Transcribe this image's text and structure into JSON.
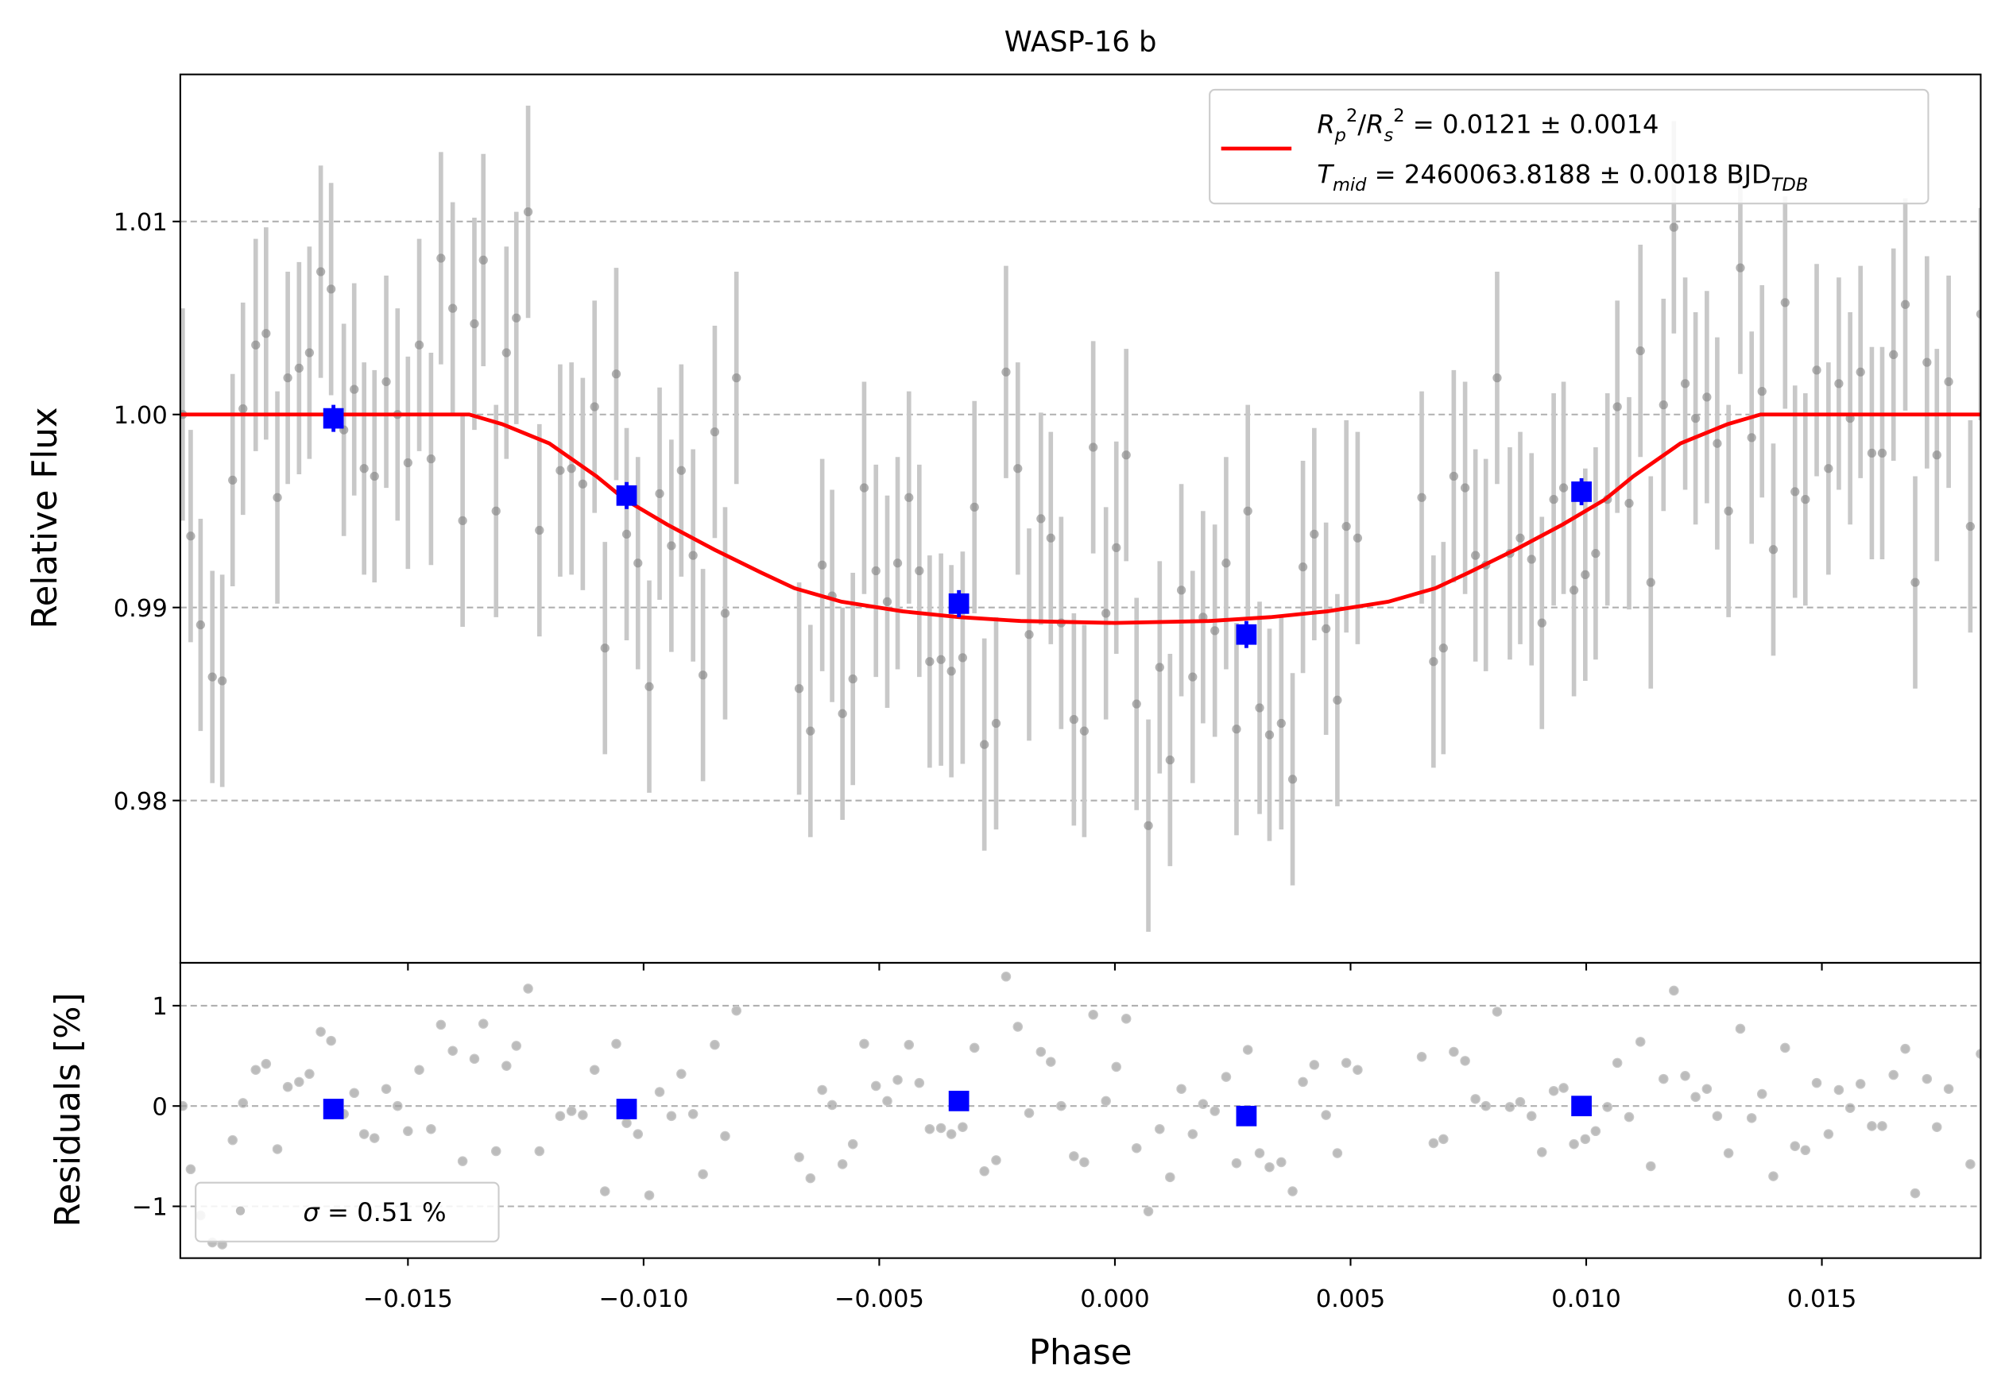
{
  "chart_data": [
    {
      "type": "scatter",
      "title": "WASP-16 b",
      "ylabel": "Relative Flux",
      "xlim": [
        -0.01983,
        0.01837
      ],
      "ylim": [
        0.97159,
        1.01762
      ],
      "yticks": [
        0.98,
        0.99,
        {
          "value": 1.0,
          "label": "1.00"
        },
        1.01
      ],
      "grid": true,
      "points": {
        "color": "#808080",
        "error_color": "#c8c8c8",
        "yerr": 0.0055,
        "x": [
          -0.01978,
          -0.01961,
          -0.0194,
          -0.01915,
          -0.01894,
          -0.01872,
          -0.0185,
          -0.01823,
          -0.01801,
          -0.01777,
          -0.01755,
          -0.01731,
          -0.01709,
          -0.01685,
          -0.01663,
          -0.01636,
          -0.01614,
          -0.01593,
          -0.01571,
          -0.01546,
          -0.01522,
          -0.015,
          -0.01476,
          -0.01451,
          -0.0143,
          -0.01405,
          -0.01384,
          -0.01359,
          -0.0134,
          -0.01313,
          -0.01291,
          -0.0127,
          -0.01245,
          -0.01221,
          -0.01177,
          -0.01153,
          -0.01129,
          -0.01104,
          -0.01082,
          -0.01058,
          -0.01036,
          -0.01012,
          -0.00988,
          -0.00966,
          -0.00941,
          -0.0092,
          -0.00895,
          -0.00874,
          -0.00849,
          -0.00827,
          -0.00803,
          -0.0067,
          -0.00646,
          -0.00621,
          -0.006,
          -0.00578,
          -0.00556,
          -0.00532,
          -0.00507,
          -0.00483,
          -0.00461,
          -0.00437,
          -0.00415,
          -0.00393,
          -0.00369,
          -0.00347,
          -0.00323,
          -0.00298,
          -0.00277,
          -0.00252,
          -0.00231,
          -0.00206,
          -0.00182,
          -0.00157,
          -0.00136,
          -0.00114,
          -0.00087,
          -0.00065,
          -0.00046,
          -0.00019,
          3e-05,
          0.00024,
          0.00046,
          0.00071,
          0.00095,
          0.00117,
          0.00141,
          0.00165,
          0.00187,
          0.00212,
          0.00236,
          0.00258,
          0.00282,
          0.00307,
          0.00328,
          0.00353,
          0.00377,
          0.00399,
          0.00423,
          0.00448,
          0.00472,
          0.00491,
          0.00515,
          0.00651,
          0.00676,
          0.00697,
          0.00719,
          0.00743,
          0.00765,
          0.00787,
          0.00811,
          0.00838,
          0.0086,
          0.00884,
          0.00906,
          0.00931,
          0.00952,
          0.00974,
          0.00998,
          0.0102,
          0.01045,
          0.01066,
          0.01091,
          0.01115,
          0.01137,
          0.01164,
          0.01186,
          0.0121,
          0.01232,
          0.01256,
          0.01278,
          0.01302,
          0.01327,
          0.01351,
          0.01373,
          0.01397,
          0.01422,
          0.01443,
          0.01465,
          0.01489,
          0.01514,
          0.01536,
          0.0156,
          0.01582,
          0.01606,
          0.01628,
          0.01652,
          0.01677,
          0.01698,
          0.01723,
          0.01744,
          0.01769,
          0.01815,
          0.01837
        ],
        "values": [
          1.0,
          0.9937,
          0.9891,
          0.9864,
          0.9862,
          0.9966,
          1.0003,
          1.0036,
          1.0042,
          0.9957,
          1.0019,
          1.0024,
          1.0032,
          1.0074,
          1.0065,
          0.9992,
          1.0013,
          0.9972,
          0.9968,
          1.0017,
          1.0,
          0.9975,
          1.0036,
          0.9977,
          1.0081,
          1.0055,
          0.9945,
          1.0047,
          1.008,
          0.995,
          1.0032,
          1.005,
          1.0105,
          0.994,
          0.9971,
          0.9972,
          0.9964,
          1.0004,
          0.9879,
          1.0021,
          0.9938,
          0.9923,
          0.9859,
          0.9959,
          0.9932,
          0.9971,
          0.9927,
          0.9865,
          0.9991,
          0.9897,
          1.0019,
          0.9858,
          0.9836,
          0.9922,
          0.9906,
          0.9845,
          0.9863,
          0.9962,
          0.9919,
          0.9903,
          0.9923,
          0.9957,
          0.9919,
          0.9872,
          0.9873,
          0.9867,
          0.9874,
          0.9952,
          0.9829,
          0.984,
          1.0022,
          0.9972,
          0.9886,
          0.9946,
          0.9936,
          0.9892,
          0.9842,
          0.9836,
          0.9983,
          0.9897,
          0.9931,
          0.9979,
          0.985,
          0.9787,
          0.9869,
          0.9821,
          0.9909,
          0.9864,
          0.9895,
          0.9888,
          0.9923,
          0.9837,
          0.995,
          0.9848,
          0.9834,
          0.984,
          0.9811,
          0.9921,
          0.9938,
          0.9889,
          0.9852,
          0.9942,
          0.9936,
          0.9957,
          0.9872,
          0.9879,
          0.9968,
          0.9962,
          0.9927,
          0.9922,
          1.0019,
          0.9928,
          0.9936,
          0.9925,
          0.9892,
          0.9956,
          0.9962,
          0.9909,
          0.9917,
          0.9928,
          0.9956,
          1.0004,
          0.9954,
          1.0033,
          0.9913,
          1.0005,
          1.0097,
          1.0016,
          0.9998,
          1.0009,
          0.9985,
          0.995,
          1.0076,
          0.9988,
          1.0012,
          0.993,
          1.0058,
          0.996,
          0.9956,
          1.0023,
          0.9972,
          1.0016,
          0.9998,
          1.0022,
          0.998,
          0.998,
          1.0031,
          1.0057,
          0.9913,
          1.0027,
          0.9979,
          1.0017,
          0.9942,
          1.0052
        ]
      },
      "binned": {
        "color": "#0000ff",
        "yerr": 0.0007,
        "x": [
          -0.01658,
          -0.01036,
          -0.00331,
          0.00279,
          0.0099
        ],
        "values": [
          0.9998,
          0.9958,
          0.9902,
          0.9886,
          0.996
        ]
      },
      "model": {
        "color": "#ff0000",
        "legend_text": [
          [
            "R",
            "p",
            "2",
            "/",
            "R",
            "s",
            "2",
            " = 0.0121 ± 0.0014"
          ],
          [
            "T",
            "mid",
            " = 2460063.8188 ± 0.0018 BJD",
            "TDB"
          ]
        ],
        "x": [
          -0.01983,
          -0.0137,
          -0.013,
          -0.012,
          -0.011,
          -0.0104,
          -0.0095,
          -0.0085,
          -0.0075,
          -0.0068,
          -0.0058,
          -0.0045,
          -0.0033,
          -0.002,
          0,
          0.002,
          0.0033,
          0.0045,
          0.0058,
          0.0068,
          0.0075,
          0.0085,
          0.0095,
          0.0104,
          0.011,
          0.012,
          0.013,
          0.0137,
          0.01837
        ],
        "values": [
          1.0,
          1.0,
          0.9995,
          0.9985,
          0.9968,
          0.9956,
          0.9943,
          0.993,
          0.9918,
          0.991,
          0.9903,
          0.9898,
          0.9895,
          0.9893,
          0.9892,
          0.9893,
          0.9895,
          0.9898,
          0.9903,
          0.991,
          0.9918,
          0.993,
          0.9943,
          0.9956,
          0.9968,
          0.9985,
          0.9995,
          1.0,
          1.0
        ]
      }
    },
    {
      "type": "scatter",
      "ylabel": "Residuals [%]",
      "xlabel": "Phase",
      "xlim": [
        -0.01983,
        0.01837
      ],
      "ylim": [
        -1.516,
        1.427
      ],
      "xticks": [
        {
          "value": -0.015,
          "label": "−0.015"
        },
        {
          "value": -0.01,
          "label": "−0.010"
        },
        {
          "value": -0.005,
          "label": "−0.005"
        },
        {
          "value": 0,
          "label": "0.000"
        },
        0.005,
        {
          "value": 0.01,
          "label": "0.010"
        },
        0.015
      ],
      "yticks": [
        {
          "value": -1,
          "label": "−1"
        },
        0,
        1
      ],
      "grid": true,
      "legend_text": [
        "σ",
        " = 0.51 %"
      ],
      "points": {
        "color": "#a0a0a0",
        "values": [
          0.0,
          -0.63,
          -1.09,
          -1.36,
          -1.38,
          -0.34,
          0.03,
          0.36,
          0.42,
          -0.43,
          0.19,
          0.24,
          0.32,
          0.74,
          0.65,
          -0.08,
          0.13,
          -0.28,
          -0.32,
          0.17,
          0.0,
          -0.25,
          0.36,
          -0.23,
          0.81,
          0.55,
          -0.55,
          0.47,
          0.82,
          -0.45,
          0.4,
          0.6,
          1.17,
          -0.45,
          -0.1,
          -0.05,
          -0.09,
          0.36,
          -0.85,
          0.62,
          -0.17,
          -0.28,
          -0.89,
          0.14,
          -0.1,
          0.32,
          -0.08,
          -0.68,
          0.61,
          -0.3,
          0.95,
          -0.51,
          -0.72,
          0.16,
          0.01,
          -0.58,
          -0.38,
          0.62,
          0.2,
          0.05,
          0.26,
          0.61,
          0.23,
          -0.23,
          -0.22,
          -0.28,
          -0.21,
          0.58,
          -0.65,
          -0.54,
          1.29,
          0.79,
          -0.07,
          0.54,
          0.44,
          0.0,
          -0.5,
          -0.56,
          0.91,
          0.05,
          0.39,
          0.87,
          -0.42,
          -1.05,
          -0.23,
          -0.71,
          0.17,
          -0.28,
          0.02,
          -0.05,
          0.29,
          -0.57,
          0.56,
          -0.47,
          -0.61,
          -0.56,
          -0.85,
          0.24,
          0.41,
          -0.09,
          -0.47,
          0.43,
          0.36,
          0.49,
          -0.37,
          -0.33,
          0.54,
          0.45,
          0.07,
          0.0,
          0.94,
          -0.01,
          0.04,
          -0.1,
          -0.46,
          0.15,
          0.18,
          -0.38,
          -0.33,
          -0.25,
          -0.01,
          0.43,
          -0.11,
          0.64,
          -0.6,
          0.27,
          1.15,
          0.3,
          0.09,
          0.17,
          -0.1,
          -0.47,
          0.77,
          -0.12,
          0.12,
          -0.7,
          0.58,
          -0.4,
          -0.44,
          0.23,
          -0.28,
          0.16,
          -0.02,
          0.22,
          -0.2,
          -0.2,
          0.31,
          0.57,
          -0.87,
          0.27,
          -0.21,
          0.17,
          -0.58,
          0.52
        ]
      },
      "binned": {
        "color": "#0000ff",
        "values": [
          -0.03,
          -0.03,
          0.05,
          -0.1,
          0.0
        ]
      }
    }
  ]
}
